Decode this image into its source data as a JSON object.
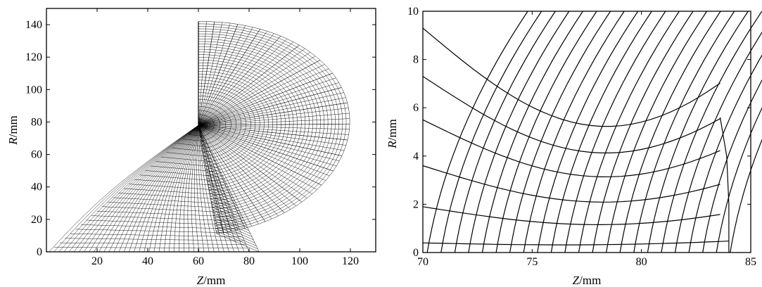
{
  "panels": [
    {
      "name": "full-mesh",
      "x_ticks": [
        "20",
        "40",
        "60",
        "80",
        "100",
        "120"
      ],
      "x_tick_values": [
        20,
        40,
        60,
        80,
        100,
        120
      ],
      "y_ticks": [
        "0",
        "20",
        "40",
        "60",
        "80",
        "100",
        "120",
        "140"
      ],
      "y_tick_values": [
        0,
        20,
        40,
        60,
        80,
        100,
        120,
        140
      ],
      "xlim": [
        0,
        130
      ],
      "ylim": [
        0,
        150
      ],
      "xlabel_italic": "Z",
      "xlabel_unit": "/mm",
      "ylabel_italic": "R",
      "ylabel_unit": "/mm"
    },
    {
      "name": "zoomed-mesh",
      "x_ticks": [
        "70",
        "75",
        "80",
        "85"
      ],
      "x_tick_values": [
        70,
        75,
        80,
        85
      ],
      "y_ticks": [
        "0",
        "2",
        "4",
        "6",
        "8",
        "10"
      ],
      "y_tick_values": [
        0,
        2,
        4,
        6,
        8,
        10
      ],
      "xlim": [
        70,
        85
      ],
      "ylim": [
        0,
        10
      ],
      "xlabel_italic": "Z",
      "xlabel_unit": "/mm",
      "ylabel_italic": "R",
      "ylabel_unit": "/mm"
    }
  ]
}
